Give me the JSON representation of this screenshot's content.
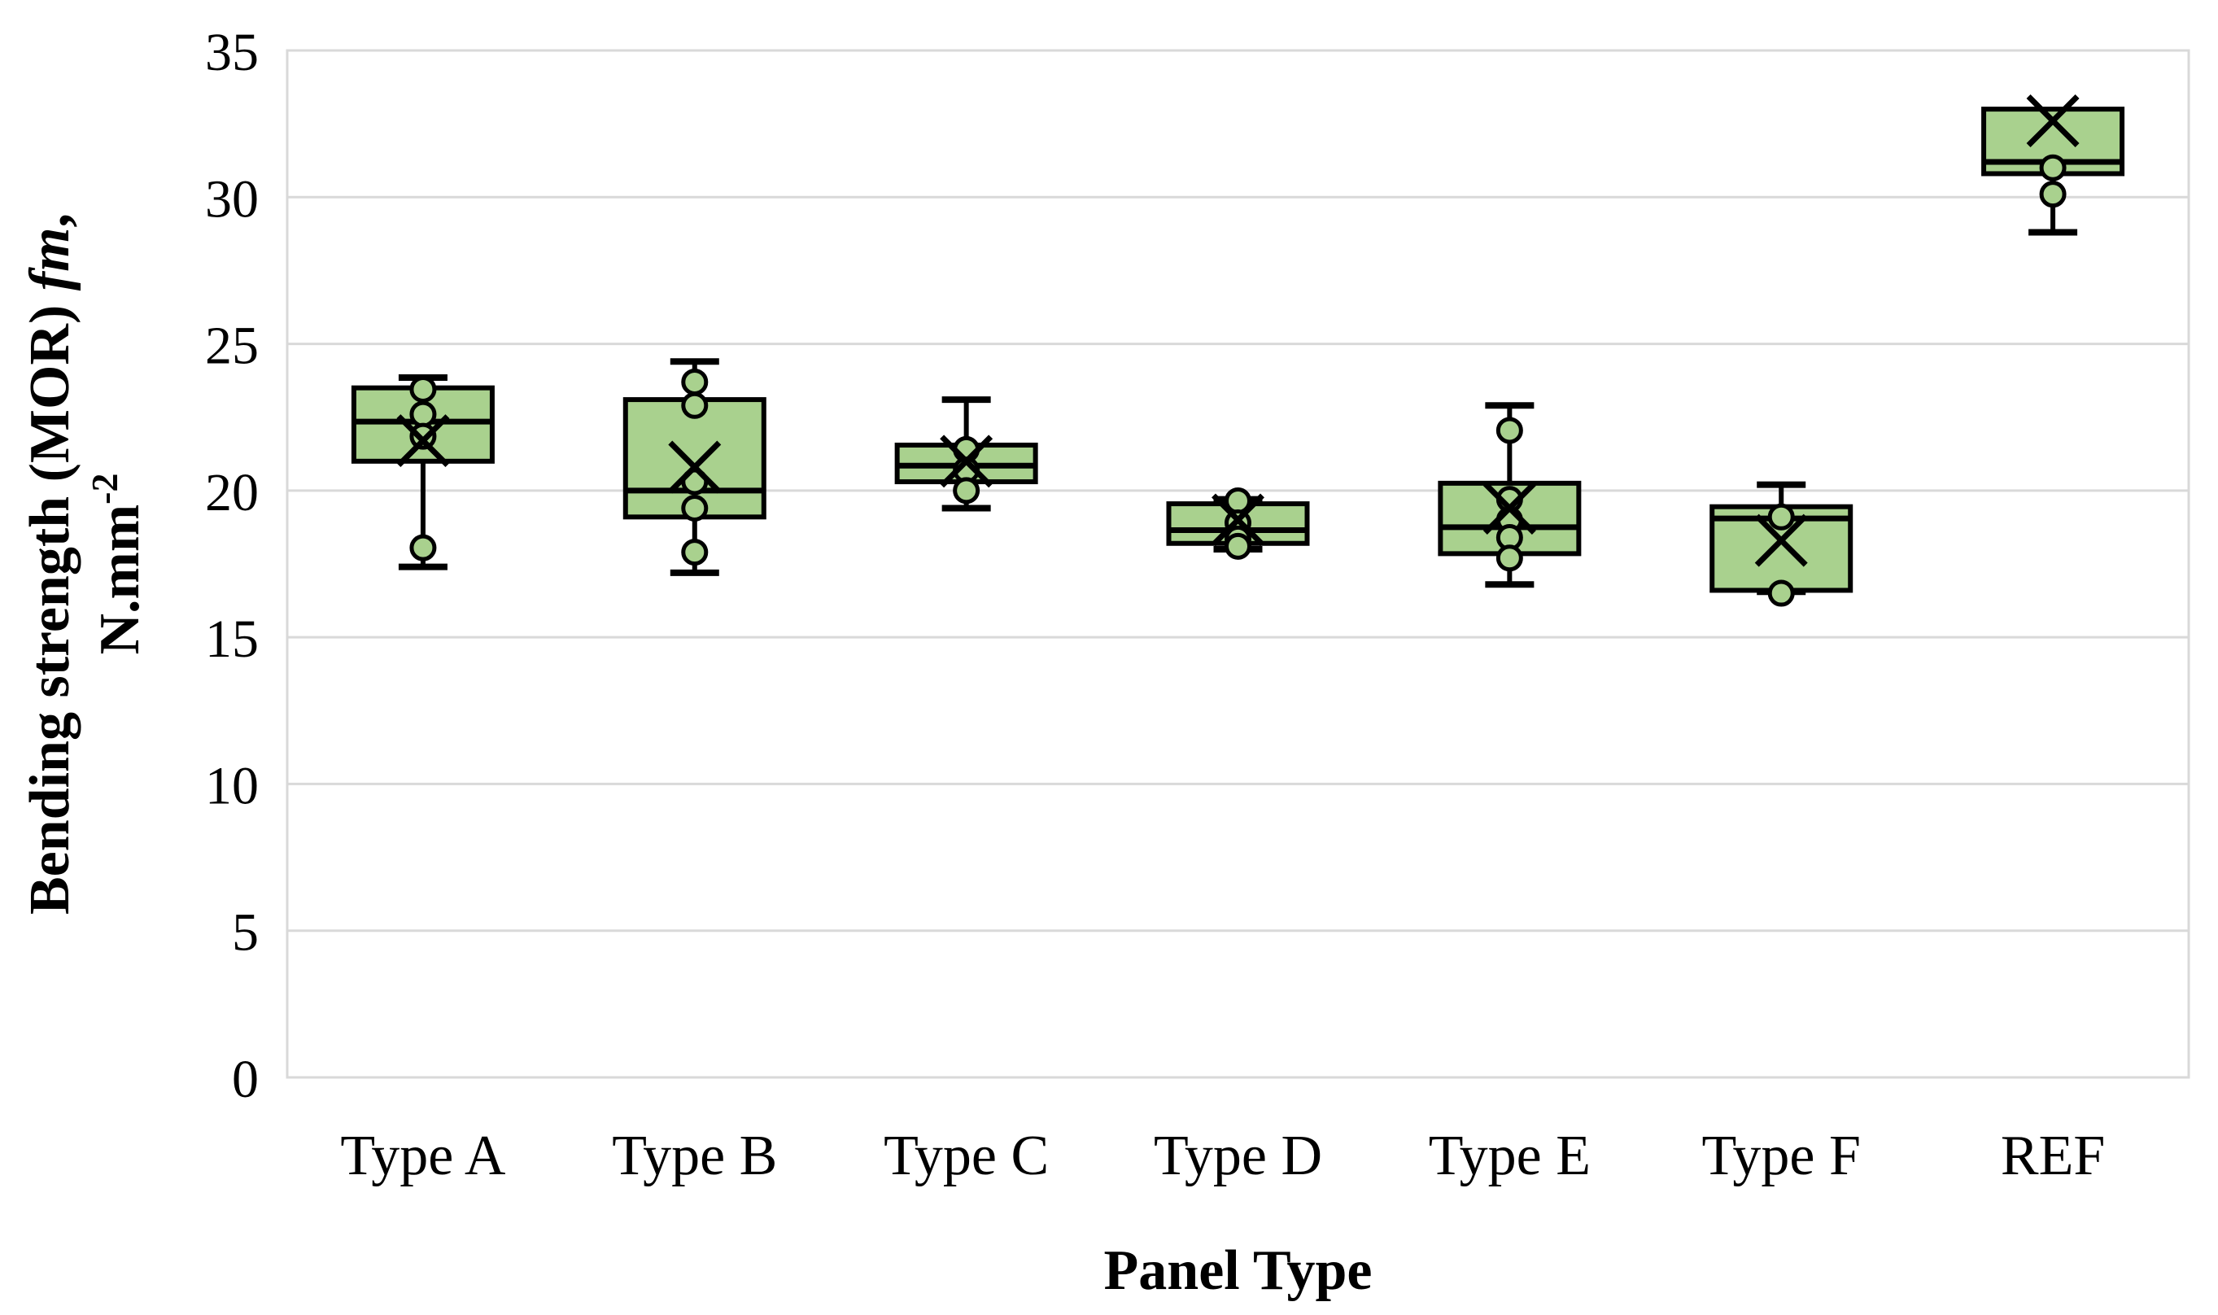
{
  "figure": {
    "background": "#FFFFFF",
    "colors": {
      "box_fill": "#A9D18E",
      "box_border": "#000000",
      "gridline": "#D9D9D9",
      "text": "#000000"
    },
    "markers": {
      "mean": "x-cross-marker",
      "data_point": "circle-marker"
    },
    "y_axis": {
      "title_line1_parts": [
        {
          "text": "Bending strength (MOR) ",
          "italic": false
        },
        {
          "text": "fm",
          "italic": true
        },
        {
          "text": ",",
          "italic": false
        }
      ],
      "title_line2_base": "N.mm",
      "title_line2_superscript": "-2"
    },
    "x_axis": {
      "title": "Panel Type"
    }
  },
  "chart_data": {
    "type": "boxplot",
    "title": "",
    "xlabel": "Panel Type",
    "ylabel": "Bending strength (MOR) fm, N.mm-2",
    "ylim": [
      0,
      35
    ],
    "y_ticks": [
      0,
      5,
      10,
      15,
      20,
      25,
      30,
      35
    ],
    "grid": true,
    "legend": "none",
    "categories": [
      "Type A",
      "Type B",
      "Type C",
      "Type D",
      "Type E",
      "Type F",
      "REF"
    ],
    "boxes": [
      {
        "label": "Type A",
        "whisker_low": 17.4,
        "q1": 21.0,
        "median": 22.35,
        "q3": 23.5,
        "whisker_high": 23.85,
        "mean": 21.7,
        "points": [
          23.45,
          22.6,
          21.85,
          18.05
        ]
      },
      {
        "label": "Type B",
        "whisker_low": 17.2,
        "q1": 19.1,
        "median": 20.0,
        "q3": 23.1,
        "whisker_high": 24.4,
        "mean": 20.8,
        "points": [
          23.7,
          22.9,
          20.3,
          19.4,
          17.9
        ]
      },
      {
        "label": "Type C",
        "whisker_low": 19.4,
        "q1": 20.3,
        "median": 20.85,
        "q3": 21.55,
        "whisker_high": 23.1,
        "mean": 21.0,
        "points": [
          21.4,
          20.7,
          20.0
        ]
      },
      {
        "label": "Type D",
        "whisker_low": 18.0,
        "q1": 18.2,
        "median": 18.65,
        "q3": 19.55,
        "whisker_high": 19.7,
        "mean": 19.0,
        "points": [
          19.65,
          18.9,
          18.35,
          18.1
        ]
      },
      {
        "label": "Type E",
        "whisker_low": 16.8,
        "q1": 17.85,
        "median": 18.75,
        "q3": 20.25,
        "whisker_high": 22.9,
        "mean": 19.4,
        "points": [
          22.05,
          19.7,
          19.0,
          18.4,
          17.7
        ]
      },
      {
        "label": "Type F",
        "whisker_low": 16.55,
        "q1": 16.6,
        "median": 19.05,
        "q3": 19.45,
        "whisker_high": 20.2,
        "mean": 18.3,
        "points": [
          19.1,
          16.5
        ]
      },
      {
        "label": "REF",
        "whisker_low": 28.8,
        "q1": 30.8,
        "median": 31.2,
        "q3": 33.0,
        "whisker_high": 33.0,
        "mean": 32.6,
        "points": [
          31.0,
          30.1
        ]
      }
    ]
  }
}
